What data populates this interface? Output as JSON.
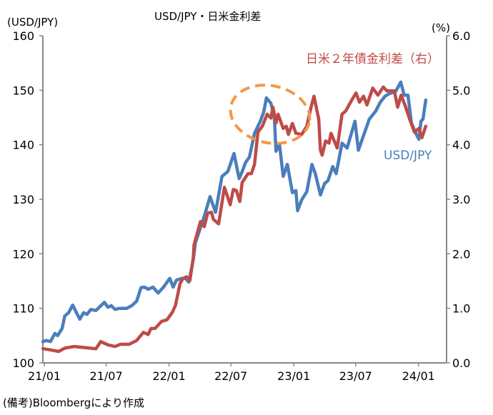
{
  "chart_data": {
    "type": "line",
    "title": "USD/JPY・日米金利差",
    "left_axis": {
      "label": "(USD/JPY)",
      "ylim": [
        100,
        160
      ],
      "ticks": [
        "100",
        "110",
        "120",
        "130",
        "140",
        "150",
        "160"
      ]
    },
    "right_axis": {
      "label": "(%)",
      "ylim": [
        0,
        6
      ],
      "ticks": [
        "0.0",
        "1.0",
        "2.0",
        "3.0",
        "4.0",
        "5.0",
        "6.0"
      ]
    },
    "x_axis": {
      "range": [
        "2021-01-01",
        "2024-02-15"
      ],
      "ticks": [
        {
          "label": "21/01",
          "date": "2021-01-01"
        },
        {
          "label": "21/07",
          "date": "2021-07-01"
        },
        {
          "label": "22/01",
          "date": "2022-01-01"
        },
        {
          "label": "22/07",
          "date": "2022-07-01"
        },
        {
          "label": "23/01",
          "date": "2023-01-01"
        },
        {
          "label": "23/07",
          "date": "2023-07-01"
        },
        {
          "label": "24/01",
          "date": "2024-01-01"
        }
      ]
    },
    "grid": false,
    "series": [
      {
        "name": "USD/JPY",
        "axis": "left",
        "color": "#4a7ebb",
        "points": [
          [
            "2020-12-28",
            103.9
          ],
          [
            "2021-01-07",
            104.1
          ],
          [
            "2021-01-19",
            103.9
          ],
          [
            "2021-02-01",
            105.4
          ],
          [
            "2021-02-09",
            105.0
          ],
          [
            "2021-02-22",
            106.3
          ],
          [
            "2021-03-02",
            108.6
          ],
          [
            "2021-03-13",
            109.2
          ],
          [
            "2021-03-25",
            110.6
          ],
          [
            "2021-04-05",
            109.2
          ],
          [
            "2021-04-15",
            108.0
          ],
          [
            "2021-04-26",
            109.2
          ],
          [
            "2021-05-06",
            108.9
          ],
          [
            "2021-05-17",
            109.8
          ],
          [
            "2021-06-01",
            109.6
          ],
          [
            "2021-06-26",
            111.1
          ],
          [
            "2021-07-06",
            110.2
          ],
          [
            "2021-07-16",
            110.5
          ],
          [
            "2021-07-27",
            109.8
          ],
          [
            "2021-08-09",
            110.0
          ],
          [
            "2021-08-30",
            110.0
          ],
          [
            "2021-09-14",
            110.5
          ],
          [
            "2021-09-28",
            111.3
          ],
          [
            "2021-10-11",
            113.8
          ],
          [
            "2021-10-21",
            113.9
          ],
          [
            "2021-11-01",
            113.5
          ],
          [
            "2021-11-15",
            113.9
          ],
          [
            "2021-11-30",
            112.8
          ],
          [
            "2021-12-16",
            113.9
          ],
          [
            "2022-01-03",
            115.5
          ],
          [
            "2022-01-13",
            113.9
          ],
          [
            "2022-01-23",
            115.2
          ],
          [
            "2022-02-08",
            115.5
          ],
          [
            "2022-02-18",
            115.5
          ],
          [
            "2022-02-28",
            114.8
          ],
          [
            "2022-03-13",
            119.0
          ],
          [
            "2022-03-19",
            122.0
          ],
          [
            "2022-04-14",
            126.9
          ],
          [
            "2022-05-01",
            130.5
          ],
          [
            "2022-05-17",
            127.6
          ],
          [
            "2022-06-05",
            134.2
          ],
          [
            "2022-06-22",
            135.1
          ],
          [
            "2022-07-10",
            138.4
          ],
          [
            "2022-07-25",
            133.8
          ],
          [
            "2022-08-03",
            135.1
          ],
          [
            "2022-08-13",
            136.8
          ],
          [
            "2022-08-24",
            137.7
          ],
          [
            "2022-09-08",
            142.1
          ],
          [
            "2022-09-25",
            144.3
          ],
          [
            "2022-10-05",
            146.0
          ],
          [
            "2022-10-13",
            148.6
          ],
          [
            "2022-10-26",
            147.6
          ],
          [
            "2022-11-05",
            145.2
          ],
          [
            "2022-11-10",
            138.8
          ],
          [
            "2022-11-20",
            140.1
          ],
          [
            "2022-12-01",
            134.2
          ],
          [
            "2022-12-13",
            136.4
          ],
          [
            "2022-12-28",
            131.2
          ],
          [
            "2023-01-07",
            131.6
          ],
          [
            "2023-01-12",
            127.9
          ],
          [
            "2023-01-24",
            129.9
          ],
          [
            "2023-02-08",
            131.4
          ],
          [
            "2023-02-23",
            136.4
          ],
          [
            "2023-03-05",
            134.7
          ],
          [
            "2023-03-20",
            130.8
          ],
          [
            "2023-04-01",
            132.9
          ],
          [
            "2023-04-11",
            133.4
          ],
          [
            "2023-04-25",
            136.0
          ],
          [
            "2023-05-05",
            134.7
          ],
          [
            "2023-05-22",
            140.3
          ],
          [
            "2023-06-06",
            139.4
          ],
          [
            "2023-06-29",
            144.3
          ],
          [
            "2023-07-09",
            139.0
          ],
          [
            "2023-07-24",
            141.7
          ],
          [
            "2023-08-10",
            144.7
          ],
          [
            "2023-08-29",
            146.2
          ],
          [
            "2023-09-11",
            147.8
          ],
          [
            "2023-09-25",
            148.9
          ],
          [
            "2023-10-05",
            149.3
          ],
          [
            "2023-10-26",
            149.8
          ],
          [
            "2023-11-10",
            151.5
          ],
          [
            "2023-11-20",
            149.1
          ],
          [
            "2023-12-01",
            149.1
          ],
          [
            "2023-12-11",
            144.0
          ],
          [
            "2023-12-24",
            142.1
          ],
          [
            "2024-01-02",
            141.0
          ],
          [
            "2024-01-08",
            144.3
          ],
          [
            "2024-01-14",
            144.7
          ],
          [
            "2024-01-22",
            148.2
          ]
        ]
      },
      {
        "name": "日米２年債金利差（右）",
        "axis": "right",
        "color": "#be4b48",
        "points": [
          [
            "2020-12-28",
            0.26
          ],
          [
            "2021-01-17",
            0.24
          ],
          [
            "2021-02-12",
            0.21
          ],
          [
            "2021-03-02",
            0.27
          ],
          [
            "2021-03-29",
            0.3
          ],
          [
            "2021-06-01",
            0.26
          ],
          [
            "2021-06-15",
            0.39
          ],
          [
            "2021-07-06",
            0.33
          ],
          [
            "2021-07-27",
            0.3
          ],
          [
            "2021-08-12",
            0.34
          ],
          [
            "2021-09-06",
            0.34
          ],
          [
            "2021-09-28",
            0.41
          ],
          [
            "2021-10-18",
            0.56
          ],
          [
            "2021-11-01",
            0.52
          ],
          [
            "2021-11-09",
            0.63
          ],
          [
            "2021-11-21",
            0.63
          ],
          [
            "2021-12-10",
            0.76
          ],
          [
            "2021-12-26",
            0.79
          ],
          [
            "2022-01-11",
            0.93
          ],
          [
            "2022-01-20",
            1.06
          ],
          [
            "2022-02-02",
            1.45
          ],
          [
            "2022-02-10",
            1.54
          ],
          [
            "2022-02-21",
            1.58
          ],
          [
            "2022-03-03",
            1.51
          ],
          [
            "2022-03-13",
            1.94
          ],
          [
            "2022-03-15",
            2.16
          ],
          [
            "2022-04-03",
            2.59
          ],
          [
            "2022-04-14",
            2.5
          ],
          [
            "2022-04-24",
            2.75
          ],
          [
            "2022-05-05",
            2.76
          ],
          [
            "2022-05-11",
            2.63
          ],
          [
            "2022-05-26",
            2.55
          ],
          [
            "2022-06-12",
            3.22
          ],
          [
            "2022-06-29",
            2.9
          ],
          [
            "2022-07-08",
            3.18
          ],
          [
            "2022-07-17",
            3.16
          ],
          [
            "2022-07-27",
            2.96
          ],
          [
            "2022-08-03",
            3.31
          ],
          [
            "2022-08-20",
            3.47
          ],
          [
            "2022-08-30",
            3.47
          ],
          [
            "2022-09-08",
            3.64
          ],
          [
            "2022-09-18",
            4.23
          ],
          [
            "2022-10-01",
            4.34
          ],
          [
            "2022-10-15",
            4.56
          ],
          [
            "2022-10-26",
            4.49
          ],
          [
            "2022-11-01",
            4.69
          ],
          [
            "2022-11-10",
            4.4
          ],
          [
            "2022-11-16",
            4.56
          ],
          [
            "2022-12-01",
            4.3
          ],
          [
            "2022-12-10",
            4.34
          ],
          [
            "2022-12-16",
            4.19
          ],
          [
            "2022-12-28",
            4.39
          ],
          [
            "2023-01-07",
            4.21
          ],
          [
            "2023-01-24",
            4.19
          ],
          [
            "2023-02-08",
            4.34
          ],
          [
            "2023-02-19",
            4.65
          ],
          [
            "2023-03-01",
            4.89
          ],
          [
            "2023-03-15",
            4.47
          ],
          [
            "2023-03-20",
            3.9
          ],
          [
            "2023-03-25",
            3.81
          ],
          [
            "2023-04-04",
            4.07
          ],
          [
            "2023-04-14",
            4.03
          ],
          [
            "2023-04-20",
            4.21
          ],
          [
            "2023-05-08",
            3.94
          ],
          [
            "2023-05-22",
            4.56
          ],
          [
            "2023-06-02",
            4.62
          ],
          [
            "2023-06-16",
            4.78
          ],
          [
            "2023-07-02",
            4.95
          ],
          [
            "2023-07-12",
            4.78
          ],
          [
            "2023-07-24",
            4.89
          ],
          [
            "2023-08-03",
            4.73
          ],
          [
            "2023-08-20",
            5.04
          ],
          [
            "2023-09-04",
            4.91
          ],
          [
            "2023-09-20",
            5.06
          ],
          [
            "2023-09-30",
            4.99
          ],
          [
            "2023-10-22",
            4.99
          ],
          [
            "2023-11-01",
            4.69
          ],
          [
            "2023-11-11",
            4.91
          ],
          [
            "2023-11-22",
            4.73
          ],
          [
            "2023-12-06",
            4.47
          ],
          [
            "2023-12-20",
            4.23
          ],
          [
            "2024-01-02",
            4.3
          ],
          [
            "2024-01-11",
            4.13
          ],
          [
            "2024-01-22",
            4.34
          ]
        ]
      }
    ],
    "annotations": {
      "highlight_ellipse_color": "#f79646",
      "highlight_ellipse_around": [
        "2022-09-08",
        "2023-02-19"
      ]
    },
    "footnote": "(備考)Bloombergにより作成"
  }
}
